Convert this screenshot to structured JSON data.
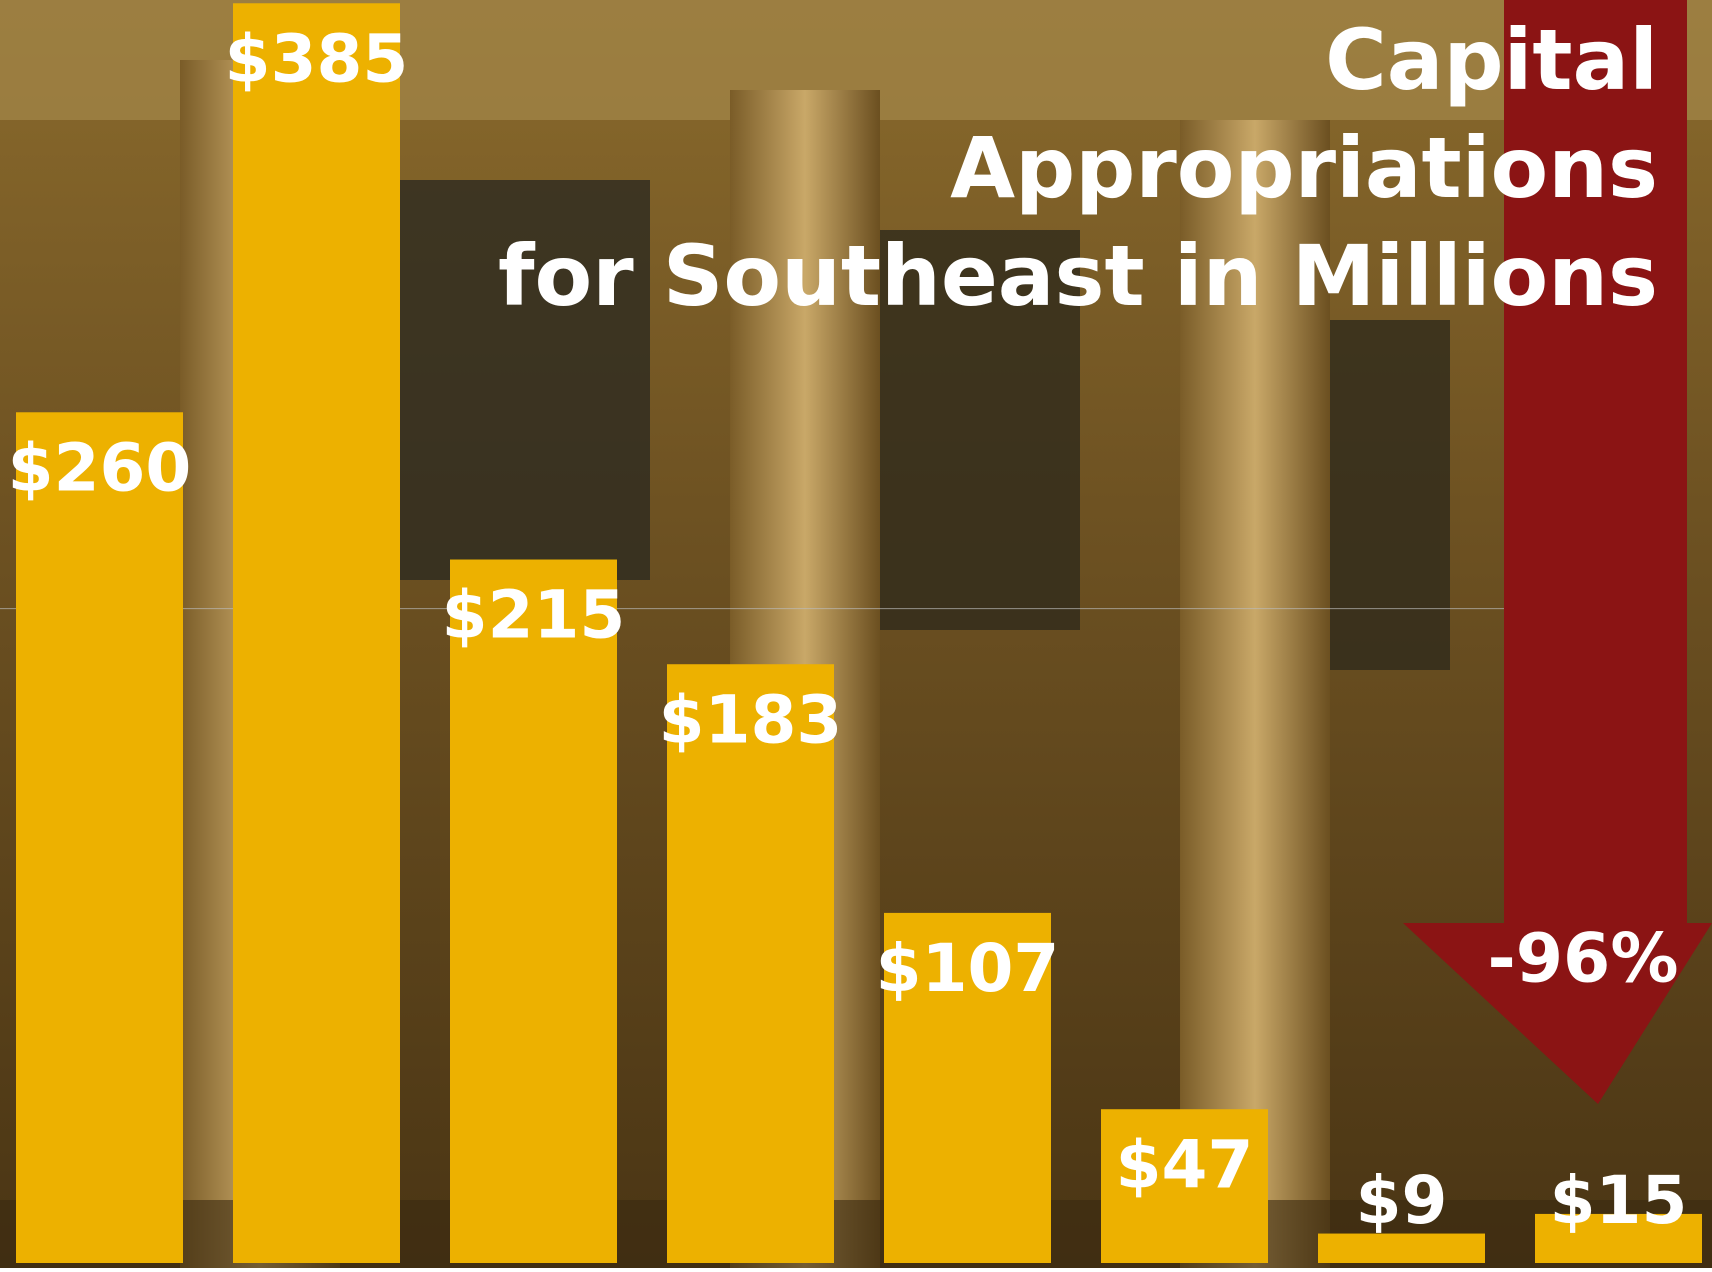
{
  "chart_data": {
    "type": "bar",
    "title": [
      "Capital",
      "Appropriations",
      "for Southeast in Millions"
    ],
    "categories": [
      null,
      null,
      null,
      null,
      null,
      null,
      null,
      null
    ],
    "values": [
      260,
      385,
      215,
      183,
      107,
      47,
      9,
      15
    ],
    "value_labels": [
      "$260",
      "$385",
      "$215",
      "$183",
      "$107",
      "$47",
      "$9",
      "$15"
    ],
    "color": "#edb100",
    "ylim": [
      0,
      386
    ],
    "yticks": [
      200
    ],
    "grid": true,
    "annotation": "-96%"
  }
}
